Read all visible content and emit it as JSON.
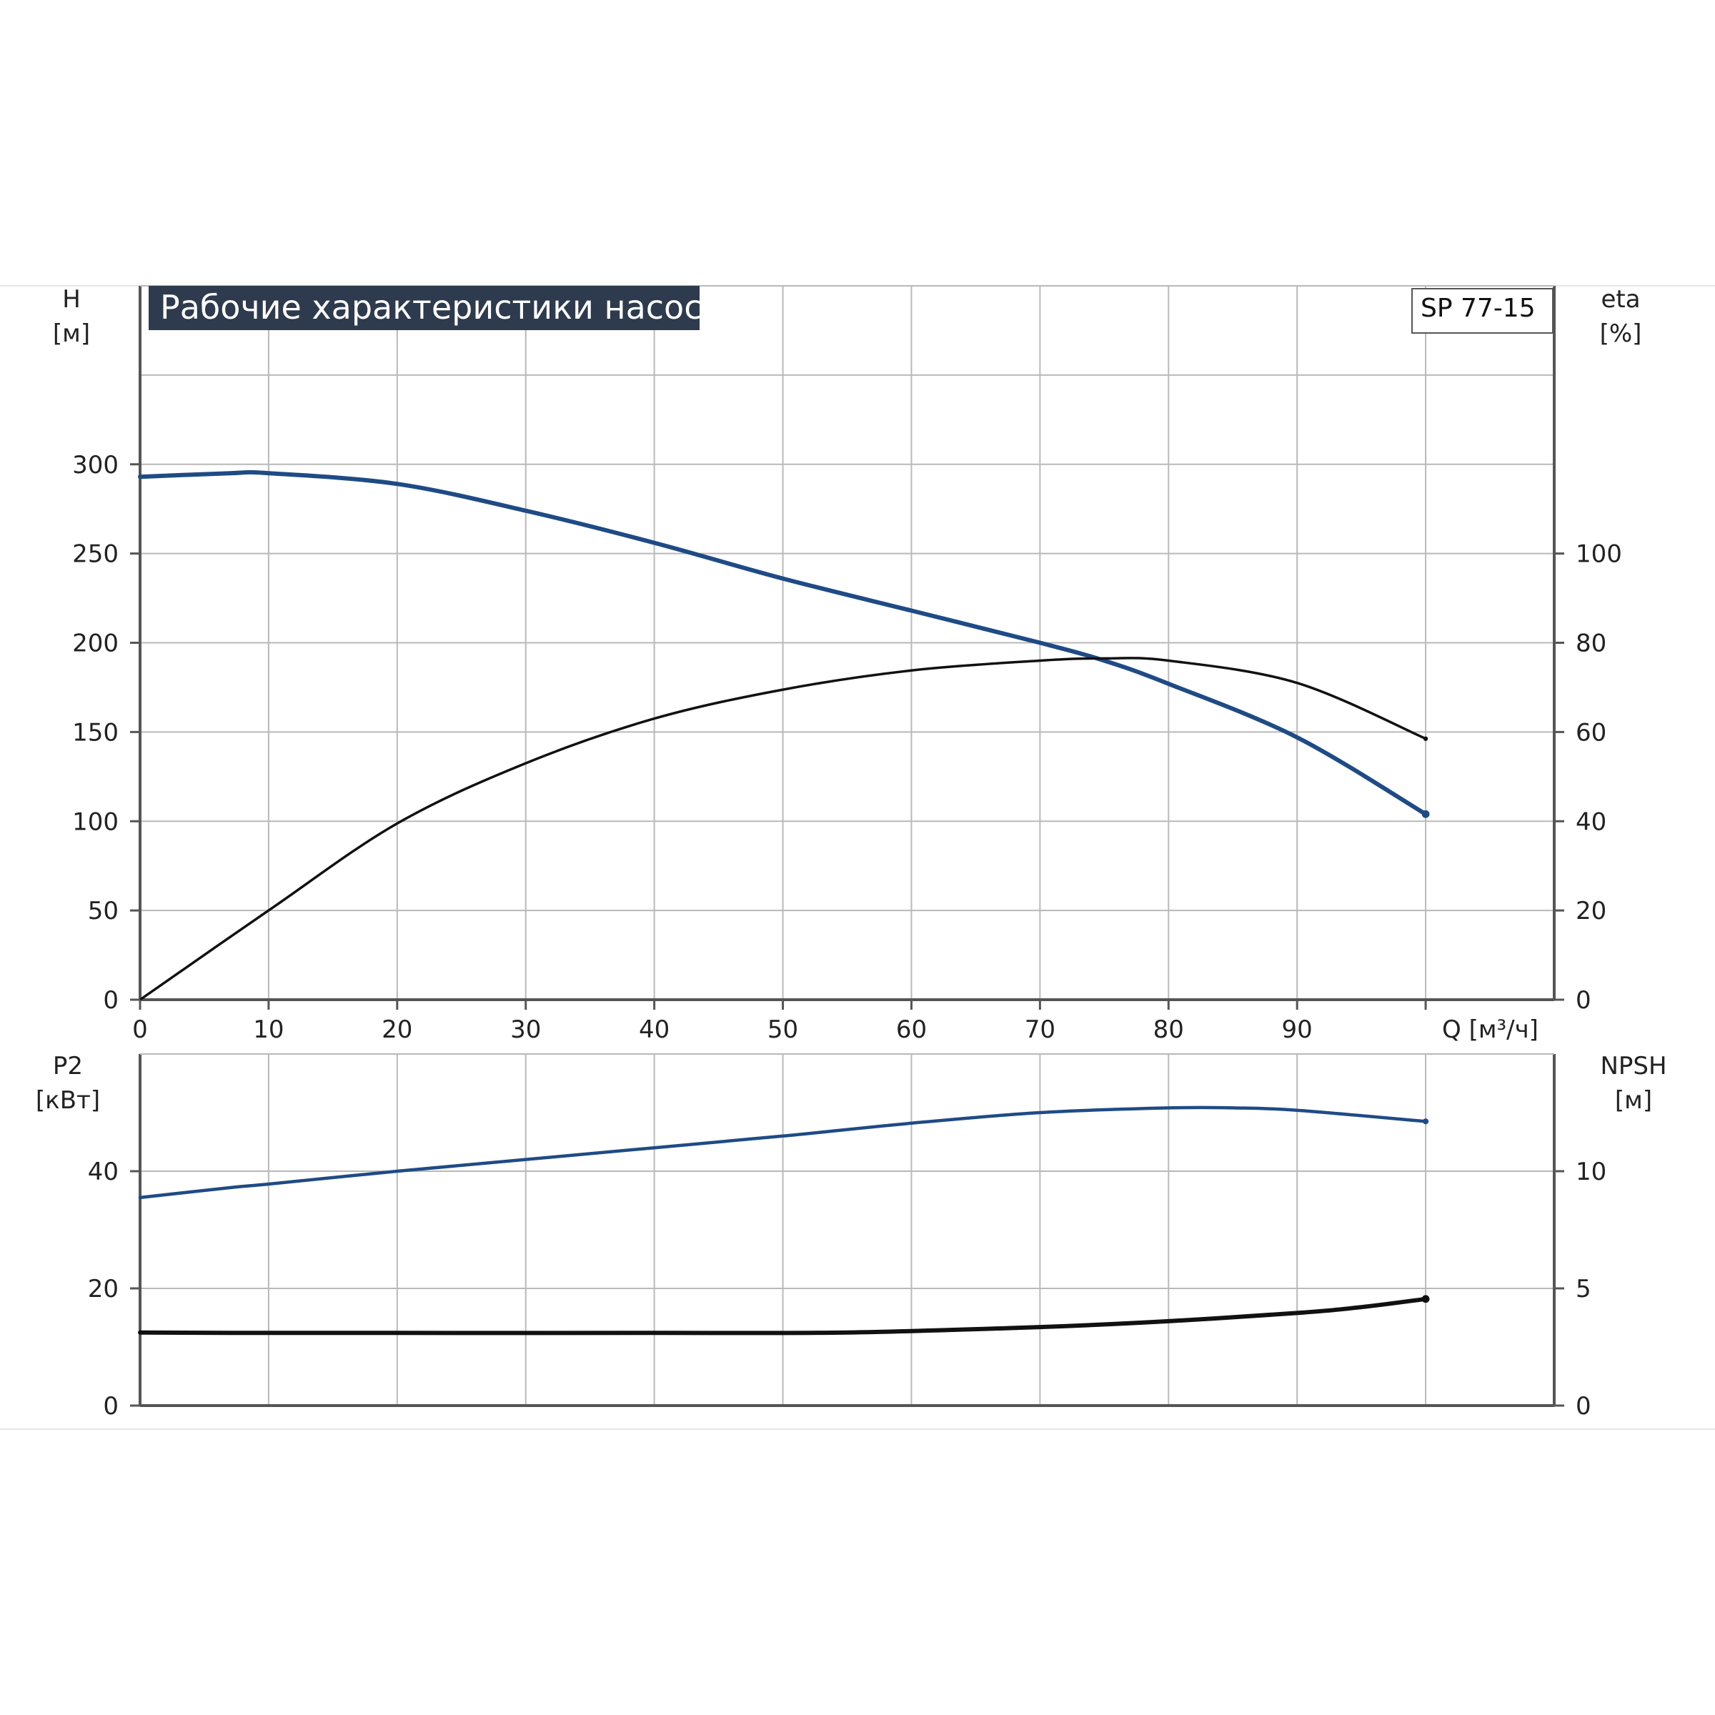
{
  "header": {
    "title": "Рабочие характеристики насоса",
    "model": "SP 77-15"
  },
  "colors": {
    "blue_curve": "#1f4b85",
    "black_curve": "#111111",
    "grid": "#b9b9b9",
    "frame": "#555555",
    "title_bg": "#2e3a4d"
  },
  "chart_data": [
    {
      "type": "line",
      "name": "top-panel",
      "xlabel": "Q [м³/ч]",
      "ylabel_left": [
        "H",
        "[м]"
      ],
      "ylabel_right": [
        "eta",
        "[%]"
      ],
      "x_ticks": [
        "0",
        "10",
        "20",
        "30",
        "40",
        "50",
        "60",
        "70",
        "80",
        "90"
      ],
      "y_left_ticks": [
        "0",
        "50",
        "100",
        "150",
        "200",
        "250",
        "300"
      ],
      "y_right_ticks": [
        "0",
        "20",
        "40",
        "60",
        "80",
        "100"
      ],
      "xlim": [
        0,
        110
      ],
      "ylim_left": [
        0,
        400
      ],
      "ylim_right": [
        0,
        160
      ],
      "grid": true,
      "series": [
        {
          "axis": "left",
          "color": "blue",
          "x": [
            0,
            7,
            10,
            20,
            30,
            40,
            50,
            60,
            70,
            75,
            80,
            90,
            100
          ],
          "y": [
            293,
            295,
            295,
            289,
            274,
            256,
            236,
            218,
            200,
            190,
            177,
            147,
            104
          ]
        },
        {
          "axis": "right",
          "color": "black",
          "x": [
            0,
            10,
            20,
            30,
            40,
            50,
            60,
            70,
            75,
            80,
            90,
            100
          ],
          "y": [
            0,
            20,
            39.5,
            53,
            63,
            69.5,
            73.8,
            76,
            76.5,
            76,
            71,
            58.5
          ]
        }
      ]
    },
    {
      "type": "line",
      "name": "bottom-panel",
      "ylabel_left": [
        "P2",
        "[кВт]"
      ],
      "ylabel_right": [
        "NPSH",
        "[м]"
      ],
      "y_left_ticks": [
        "0",
        "20",
        "40"
      ],
      "y_right_ticks": [
        "0",
        "5",
        "10"
      ],
      "xlim": [
        0,
        110
      ],
      "ylim_left": [
        0,
        60
      ],
      "ylim_right": [
        0,
        15
      ],
      "grid": true,
      "series": [
        {
          "axis": "left",
          "color": "blue",
          "x": [
            0,
            7,
            10,
            20,
            30,
            40,
            50,
            60,
            70,
            80,
            85,
            90,
            100
          ],
          "y": [
            35.5,
            37.2,
            37.8,
            40,
            42,
            44,
            46,
            48.2,
            50,
            50.8,
            50.8,
            50.4,
            48.5
          ]
        },
        {
          "axis": "right",
          "color": "black",
          "x": [
            0,
            7,
            20,
            40,
            55,
            70,
            80,
            90,
            95,
            100
          ],
          "y": [
            3.12,
            3.1,
            3.1,
            3.1,
            3.12,
            3.35,
            3.6,
            3.95,
            4.2,
            4.55
          ]
        }
      ]
    }
  ]
}
